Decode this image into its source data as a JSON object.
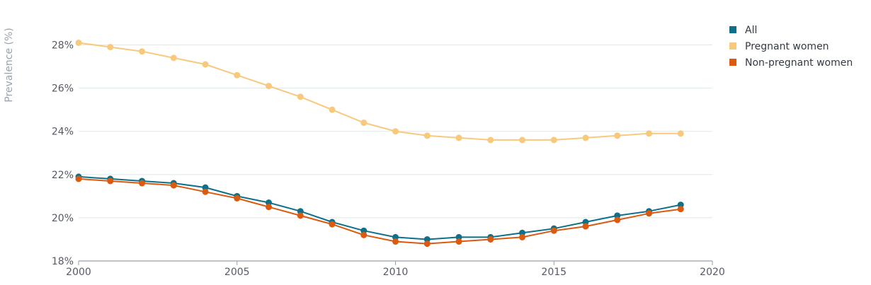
{
  "chart_data": {
    "type": "line",
    "ylabel": "Prevalence (%)",
    "xlim": [
      2000,
      2020
    ],
    "ylim": [
      18,
      29
    ],
    "x_ticks": [
      {
        "value": 2000,
        "label": "2000"
      },
      {
        "value": 2005,
        "label": "2005"
      },
      {
        "value": 2010,
        "label": "2010"
      },
      {
        "value": 2015,
        "label": "2015"
      },
      {
        "value": 2020,
        "label": "2020"
      }
    ],
    "y_ticks": [
      {
        "value": 18,
        "label": "18%"
      },
      {
        "value": 20,
        "label": "20%"
      },
      {
        "value": 22,
        "label": "22%"
      },
      {
        "value": 24,
        "label": "24%"
      },
      {
        "value": 26,
        "label": "26%"
      },
      {
        "value": 28,
        "label": "28%"
      }
    ],
    "grid": true,
    "legend_position": "top-right",
    "x": [
      2000,
      2001,
      2002,
      2003,
      2004,
      2005,
      2006,
      2007,
      2008,
      2009,
      2010,
      2011,
      2012,
      2013,
      2014,
      2015,
      2016,
      2017,
      2018,
      2019
    ],
    "series": [
      {
        "name": "All",
        "color": "#0e7089",
        "values": [
          21.9,
          21.8,
          21.7,
          21.6,
          21.4,
          21.0,
          20.7,
          20.3,
          19.8,
          19.4,
          19.1,
          19.0,
          19.1,
          19.1,
          19.3,
          19.5,
          19.8,
          20.1,
          20.3,
          20.6
        ]
      },
      {
        "name": "Pregnant women",
        "color": "#f8c97c",
        "values": [
          28.1,
          27.9,
          27.7,
          27.4,
          27.1,
          26.6,
          26.1,
          25.6,
          25.0,
          24.4,
          24.0,
          23.8,
          23.7,
          23.6,
          23.6,
          23.6,
          23.7,
          23.8,
          23.9,
          23.9
        ]
      },
      {
        "name": "Non-pregnant women",
        "color": "#db5a0f",
        "values": [
          21.8,
          21.7,
          21.6,
          21.5,
          21.2,
          20.9,
          20.5,
          20.1,
          19.7,
          19.2,
          18.9,
          18.8,
          18.9,
          19.0,
          19.1,
          19.4,
          19.6,
          19.9,
          20.2,
          20.4
        ]
      }
    ]
  }
}
